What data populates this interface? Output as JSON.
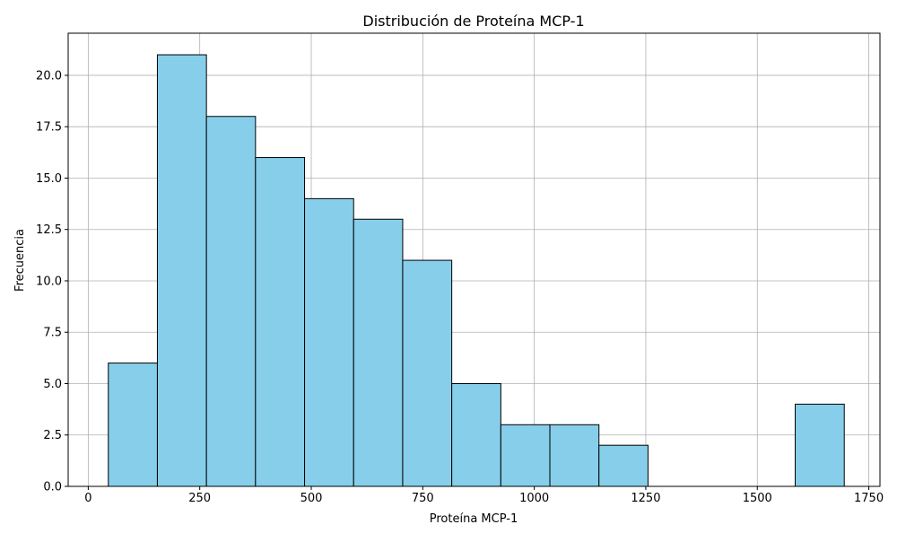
{
  "chart_data": {
    "type": "bar",
    "title": "Distribución de Proteína MCP-1",
    "xlabel": "Proteína MCP-1",
    "ylabel": "Frecuencia",
    "xlim": [
      -45,
      1775
    ],
    "ylim": [
      0,
      22.05
    ],
    "xticks": [
      0,
      250,
      500,
      750,
      1000,
      1250,
      1500,
      1750
    ],
    "xtick_labels": [
      "0",
      "250",
      "500",
      "750",
      "1000",
      "1250",
      "1500",
      "1750"
    ],
    "yticks": [
      0.0,
      2.5,
      5.0,
      7.5,
      10.0,
      12.5,
      15.0,
      17.5,
      20.0
    ],
    "ytick_labels": [
      "0.0",
      "2.5",
      "5.0",
      "7.5",
      "10.0",
      "12.5",
      "15.0",
      "17.5",
      "20.0"
    ],
    "grid": true,
    "bar_color": "#87ceeb",
    "edge_color": "#000000",
    "bins": [
      {
        "x0": 45,
        "x1": 155,
        "count": 6
      },
      {
        "x0": 155,
        "x1": 265,
        "count": 21
      },
      {
        "x0": 265,
        "x1": 375,
        "count": 18
      },
      {
        "x0": 375,
        "x1": 485,
        "count": 16
      },
      {
        "x0": 485,
        "x1": 595,
        "count": 14
      },
      {
        "x0": 595,
        "x1": 705,
        "count": 13
      },
      {
        "x0": 705,
        "x1": 815,
        "count": 11
      },
      {
        "x0": 815,
        "x1": 925,
        "count": 5
      },
      {
        "x0": 925,
        "x1": 1035,
        "count": 3
      },
      {
        "x0": 1035,
        "x1": 1145,
        "count": 3
      },
      {
        "x0": 1145,
        "x1": 1255,
        "count": 2
      },
      {
        "x0": 1255,
        "x1": 1365,
        "count": 0
      },
      {
        "x0": 1365,
        "x1": 1475,
        "count": 0
      },
      {
        "x0": 1475,
        "x1": 1585,
        "count": 0
      },
      {
        "x0": 1585,
        "x1": 1695,
        "count": 4
      }
    ]
  }
}
